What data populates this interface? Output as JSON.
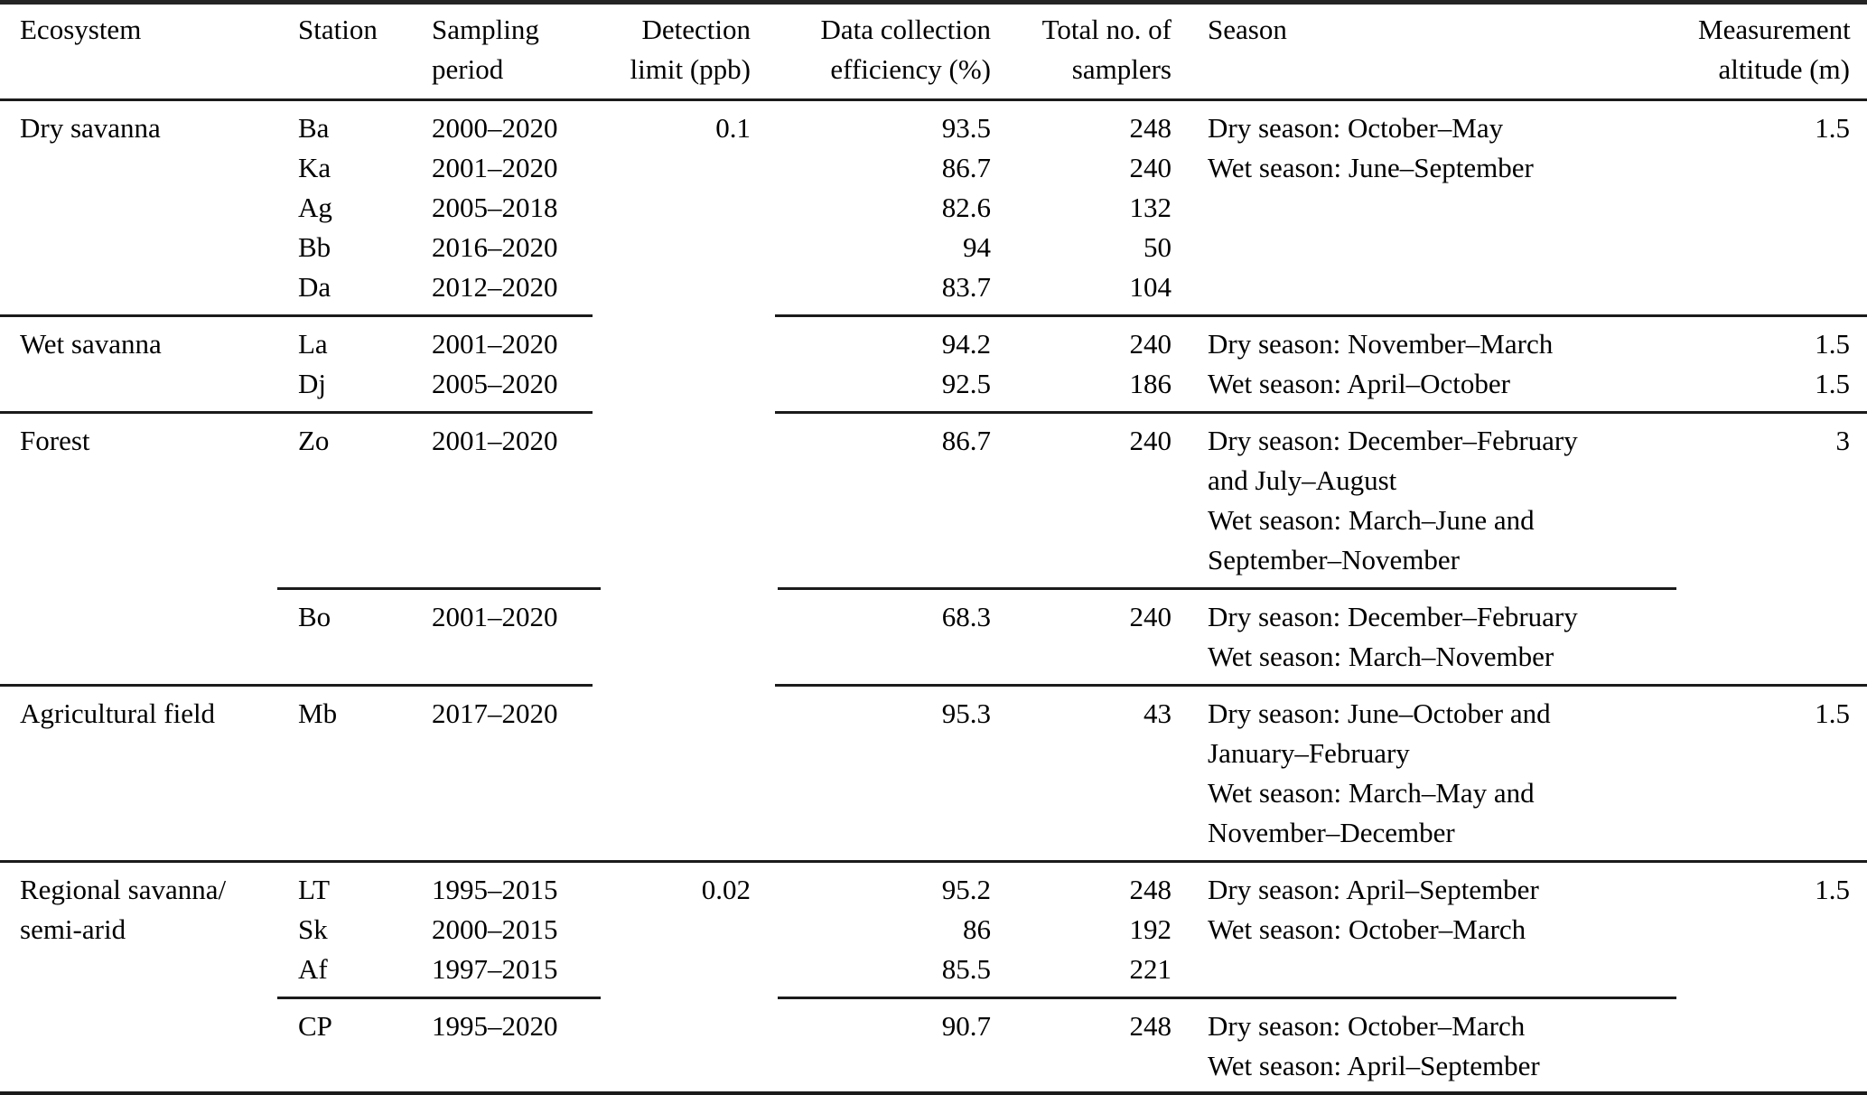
{
  "table": {
    "header": {
      "ecosystem": [
        "Ecosystem",
        ""
      ],
      "station": [
        "Station",
        ""
      ],
      "sampling": [
        "Sampling",
        "period"
      ],
      "detection": [
        "Detection",
        "limit (ppb)"
      ],
      "efficiency": [
        "Data collection",
        "efficiency (%)"
      ],
      "samplers": [
        "Total no. of",
        "samplers"
      ],
      "season": [
        "Season",
        ""
      ],
      "altitude": [
        "Measurement",
        "altitude (m)"
      ]
    },
    "sections": [
      {
        "name": "Dry savanna",
        "rows": [
          {
            "ecosystem": "Dry savanna",
            "station": "Ba",
            "period": "2000–2020",
            "detection": "0.1",
            "efficiency": "93.5",
            "samplers": "248",
            "season": "Dry season: October–May",
            "altitude": "1.5"
          },
          {
            "ecosystem": "",
            "station": "Ka",
            "period": "2001–2020",
            "detection": "",
            "efficiency": "86.7",
            "samplers": "240",
            "season": "Wet season: June–September",
            "altitude": ""
          },
          {
            "ecosystem": "",
            "station": "Ag",
            "period": "2005–2018",
            "detection": "",
            "efficiency": "82.6",
            "samplers": "132",
            "season": "",
            "altitude": ""
          },
          {
            "ecosystem": "",
            "station": "Bb",
            "period": "2016–2020",
            "detection": "",
            "efficiency": "94",
            "samplers": "50",
            "season": "",
            "altitude": ""
          },
          {
            "ecosystem": "",
            "station": "Da",
            "period": "2012–2020",
            "detection": "",
            "efficiency": "83.7",
            "samplers": "104",
            "season": "",
            "altitude": ""
          }
        ]
      },
      {
        "name": "Wet savanna",
        "rows": [
          {
            "ecosystem": "Wet savanna",
            "station": "La",
            "period": "2001–2020",
            "detection": "",
            "efficiency": "94.2",
            "samplers": "240",
            "season": "Dry season: November–March",
            "altitude": "1.5"
          },
          {
            "ecosystem": "",
            "station": "Dj",
            "period": "2005–2020",
            "detection": "",
            "efficiency": "92.5",
            "samplers": "186",
            "season": "Wet season: April–October",
            "altitude": "1.5"
          }
        ]
      },
      {
        "name": "Forest (Zo)",
        "rows": [
          {
            "ecosystem": "Forest",
            "station": "Zo",
            "period": "2001–2020",
            "detection": "",
            "efficiency": "86.7",
            "samplers": "240",
            "season": "Dry season: December–February",
            "altitude": "3"
          },
          {
            "ecosystem": "",
            "station": "",
            "period": "",
            "detection": "",
            "efficiency": "",
            "samplers": "",
            "season": "and July–August",
            "altitude": ""
          },
          {
            "ecosystem": "",
            "station": "",
            "period": "",
            "detection": "",
            "efficiency": "",
            "samplers": "",
            "season": "Wet season: March–June and",
            "altitude": ""
          },
          {
            "ecosystem": "",
            "station": "",
            "period": "",
            "detection": "",
            "efficiency": "",
            "samplers": "",
            "season": "September–November",
            "altitude": ""
          }
        ]
      },
      {
        "name": "Forest (Bo)",
        "rows": [
          {
            "ecosystem": "",
            "station": "Bo",
            "period": "2001–2020",
            "detection": "",
            "efficiency": "68.3",
            "samplers": "240",
            "season": "Dry season: December–February",
            "altitude": ""
          },
          {
            "ecosystem": "",
            "station": "",
            "period": "",
            "detection": "",
            "efficiency": "",
            "samplers": "",
            "season": "Wet season: March–November",
            "altitude": ""
          }
        ]
      },
      {
        "name": "Agricultural field",
        "rows": [
          {
            "ecosystem": "Agricultural field",
            "station": "Mb",
            "period": "2017–2020",
            "detection": "",
            "efficiency": "95.3",
            "samplers": "43",
            "season": "Dry season: June–October and",
            "altitude": "1.5"
          },
          {
            "ecosystem": "",
            "station": "",
            "period": "",
            "detection": "",
            "efficiency": "",
            "samplers": "",
            "season": "January–February",
            "altitude": ""
          },
          {
            "ecosystem": "",
            "station": "",
            "period": "",
            "detection": "",
            "efficiency": "",
            "samplers": "",
            "season": "Wet season: March–May and",
            "altitude": ""
          },
          {
            "ecosystem": "",
            "station": "",
            "period": "",
            "detection": "",
            "efficiency": "",
            "samplers": "",
            "season": "November–December",
            "altitude": ""
          }
        ]
      },
      {
        "name": "Regional savanna/semi-arid (LT, Sk, Af)",
        "rows": [
          {
            "ecosystem": "Regional savanna/",
            "station": "LT",
            "period": "1995–2015",
            "detection": "0.02",
            "efficiency": "95.2",
            "samplers": "248",
            "season": "Dry season: April–September",
            "altitude": "1.5"
          },
          {
            "ecosystem": "semi-arid",
            "station": "Sk",
            "period": "2000–2015",
            "detection": "",
            "efficiency": "86",
            "samplers": "192",
            "season": "Wet season: October–March",
            "altitude": ""
          },
          {
            "ecosystem": "",
            "station": "Af",
            "period": "1997–2015",
            "detection": "",
            "efficiency": "85.5",
            "samplers": "221",
            "season": "",
            "altitude": ""
          }
        ]
      },
      {
        "name": "Regional savanna/semi-arid (CP)",
        "rows": [
          {
            "ecosystem": "",
            "station": "CP",
            "period": "1995–2020",
            "detection": "",
            "efficiency": "90.7",
            "samplers": "248",
            "season": "Dry season: October–March",
            "altitude": ""
          },
          {
            "ecosystem": "",
            "station": "",
            "period": "",
            "detection": "",
            "efficiency": "",
            "samplers": "",
            "season": "Wet season: April–September",
            "altitude": ""
          }
        ]
      }
    ]
  }
}
